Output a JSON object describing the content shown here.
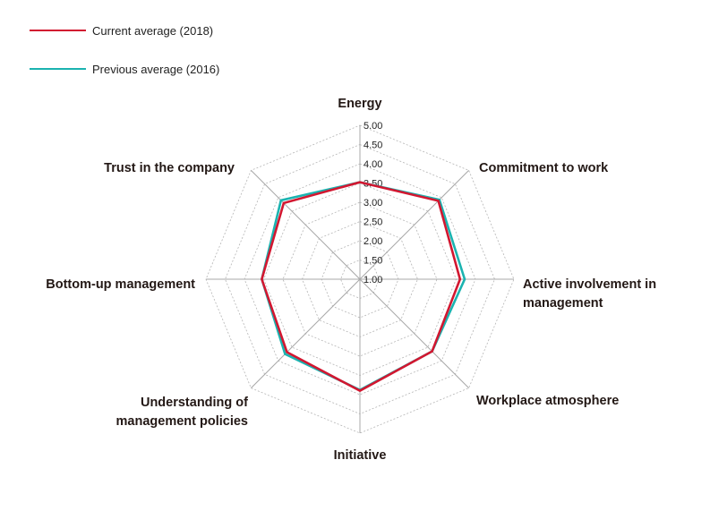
{
  "chart_data": {
    "type": "radar",
    "axes": [
      "Energy",
      "Commitment to work",
      "Active involvement in management",
      "Workplace atmosphere",
      "Initiative",
      "Understanding of management policies",
      "Bottom-up management",
      "Trust in the company"
    ],
    "axis_label_lines": [
      [
        "Energy"
      ],
      [
        "Commitment to work"
      ],
      [
        "Active involvement in",
        "management"
      ],
      [
        "Workplace atmosphere"
      ],
      [
        "Initiative"
      ],
      [
        "Understanding of",
        "management policies"
      ],
      [
        "Bottom-up management"
      ],
      [
        "Trust in the company"
      ]
    ],
    "range": [
      1.0,
      5.0
    ],
    "ticks": [
      "1.00",
      "1.50",
      "2.00",
      "2.50",
      "3.00",
      "3.50",
      "4.00",
      "4.50",
      "5.00"
    ],
    "tick_values": [
      1.0,
      1.5,
      2.0,
      2.5,
      3.0,
      3.5,
      4.0,
      4.5,
      5.0
    ],
    "series": [
      {
        "name": "Previous average (2016)",
        "color": "#1bb3b0",
        "values": [
          3.52,
          3.92,
          3.72,
          3.65,
          3.88,
          3.75,
          3.55,
          3.9
        ]
      },
      {
        "name": "Current average (2018)",
        "color": "#d21730",
        "values": [
          3.52,
          3.88,
          3.6,
          3.65,
          3.9,
          3.68,
          3.55,
          3.8
        ]
      }
    ],
    "legend": "top-left",
    "grid": true
  }
}
